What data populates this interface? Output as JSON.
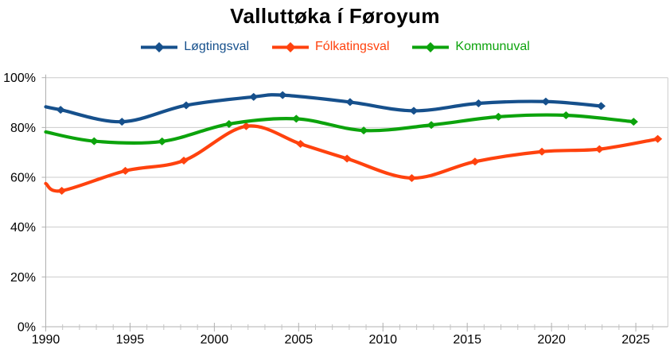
{
  "title": "Valluttøka í Føroyum",
  "legend": {
    "position": "top",
    "items": [
      {
        "label": "Løgtingsval",
        "color": "#16508C"
      },
      {
        "label": "Fólkatingsval",
        "color": "#FF420E"
      },
      {
        "label": "Kommunuval",
        "color": "#0CA30C"
      }
    ]
  },
  "colors": {
    "background": "#ffffff",
    "gridline": "#cccccc",
    "axis": "#b0b0b0",
    "minor_tick": "#c4c4c4",
    "text": "#000000"
  },
  "chart_data": {
    "type": "line",
    "title": "Valluttøka í Føroyum",
    "xlabel": "",
    "ylabel": "",
    "xlim": [
      1990,
      2026.9
    ],
    "ylim": [
      0,
      100
    ],
    "grid": "horizontal",
    "legend_position": "top-center",
    "line_style": "smooth-spline-with-diamond-markers",
    "y_ticks": [
      {
        "v": 0,
        "label": "0%"
      },
      {
        "v": 20,
        "label": "20%"
      },
      {
        "v": 40,
        "label": "40%"
      },
      {
        "v": 60,
        "label": "60%"
      },
      {
        "v": 80,
        "label": "80%"
      },
      {
        "v": 100,
        "label": "100%"
      }
    ],
    "x_ticks": [
      {
        "v": 1990,
        "label": "1990"
      },
      {
        "v": 1995,
        "label": "1995"
      },
      {
        "v": 2000,
        "label": "2000"
      },
      {
        "v": 2005,
        "label": "2005"
      },
      {
        "v": 2010,
        "label": "2010"
      },
      {
        "v": 2015,
        "label": "2015"
      },
      {
        "v": 2020,
        "label": "2020"
      },
      {
        "v": 2025,
        "label": "2025"
      }
    ],
    "x_minor_tick_step": 1,
    "series": [
      {
        "name": "Løgtingsval",
        "color": "#16508C",
        "clip_start_at_1990": 88.3,
        "points": [
          [
            1990.88,
            87.1
          ],
          [
            1994.52,
            82.3
          ],
          [
            1998.33,
            88.9
          ],
          [
            2002.33,
            92.3
          ],
          [
            2004.05,
            93.0
          ],
          [
            2008.05,
            90.2
          ],
          [
            2011.83,
            86.7
          ],
          [
            2015.67,
            89.7
          ],
          [
            2019.66,
            90.4
          ],
          [
            2022.94,
            88.6
          ]
        ]
      },
      {
        "name": "Fólkatingsval",
        "color": "#FF420E",
        "clip_start_at_1990": 57.5,
        "points": [
          [
            1990.95,
            54.6
          ],
          [
            1994.72,
            62.6
          ],
          [
            1998.19,
            66.7
          ],
          [
            2001.89,
            80.5
          ],
          [
            2005.11,
            73.4
          ],
          [
            2007.87,
            67.5
          ],
          [
            2011.71,
            59.7
          ],
          [
            2015.46,
            66.3
          ],
          [
            2019.43,
            70.3
          ],
          [
            2022.84,
            71.3
          ],
          [
            2026.3,
            75.4
          ]
        ]
      },
      {
        "name": "Kommunuval",
        "color": "#0CA30C",
        "clip_start_at_1990": 78.2,
        "points": [
          [
            1992.87,
            74.5
          ],
          [
            1996.9,
            74.4
          ],
          [
            2000.87,
            81.4
          ],
          [
            2004.86,
            83.5
          ],
          [
            2008.86,
            78.8
          ],
          [
            2012.87,
            81.0
          ],
          [
            2016.85,
            84.3
          ],
          [
            2020.86,
            84.9
          ],
          [
            2024.87,
            82.3
          ]
        ]
      }
    ]
  }
}
